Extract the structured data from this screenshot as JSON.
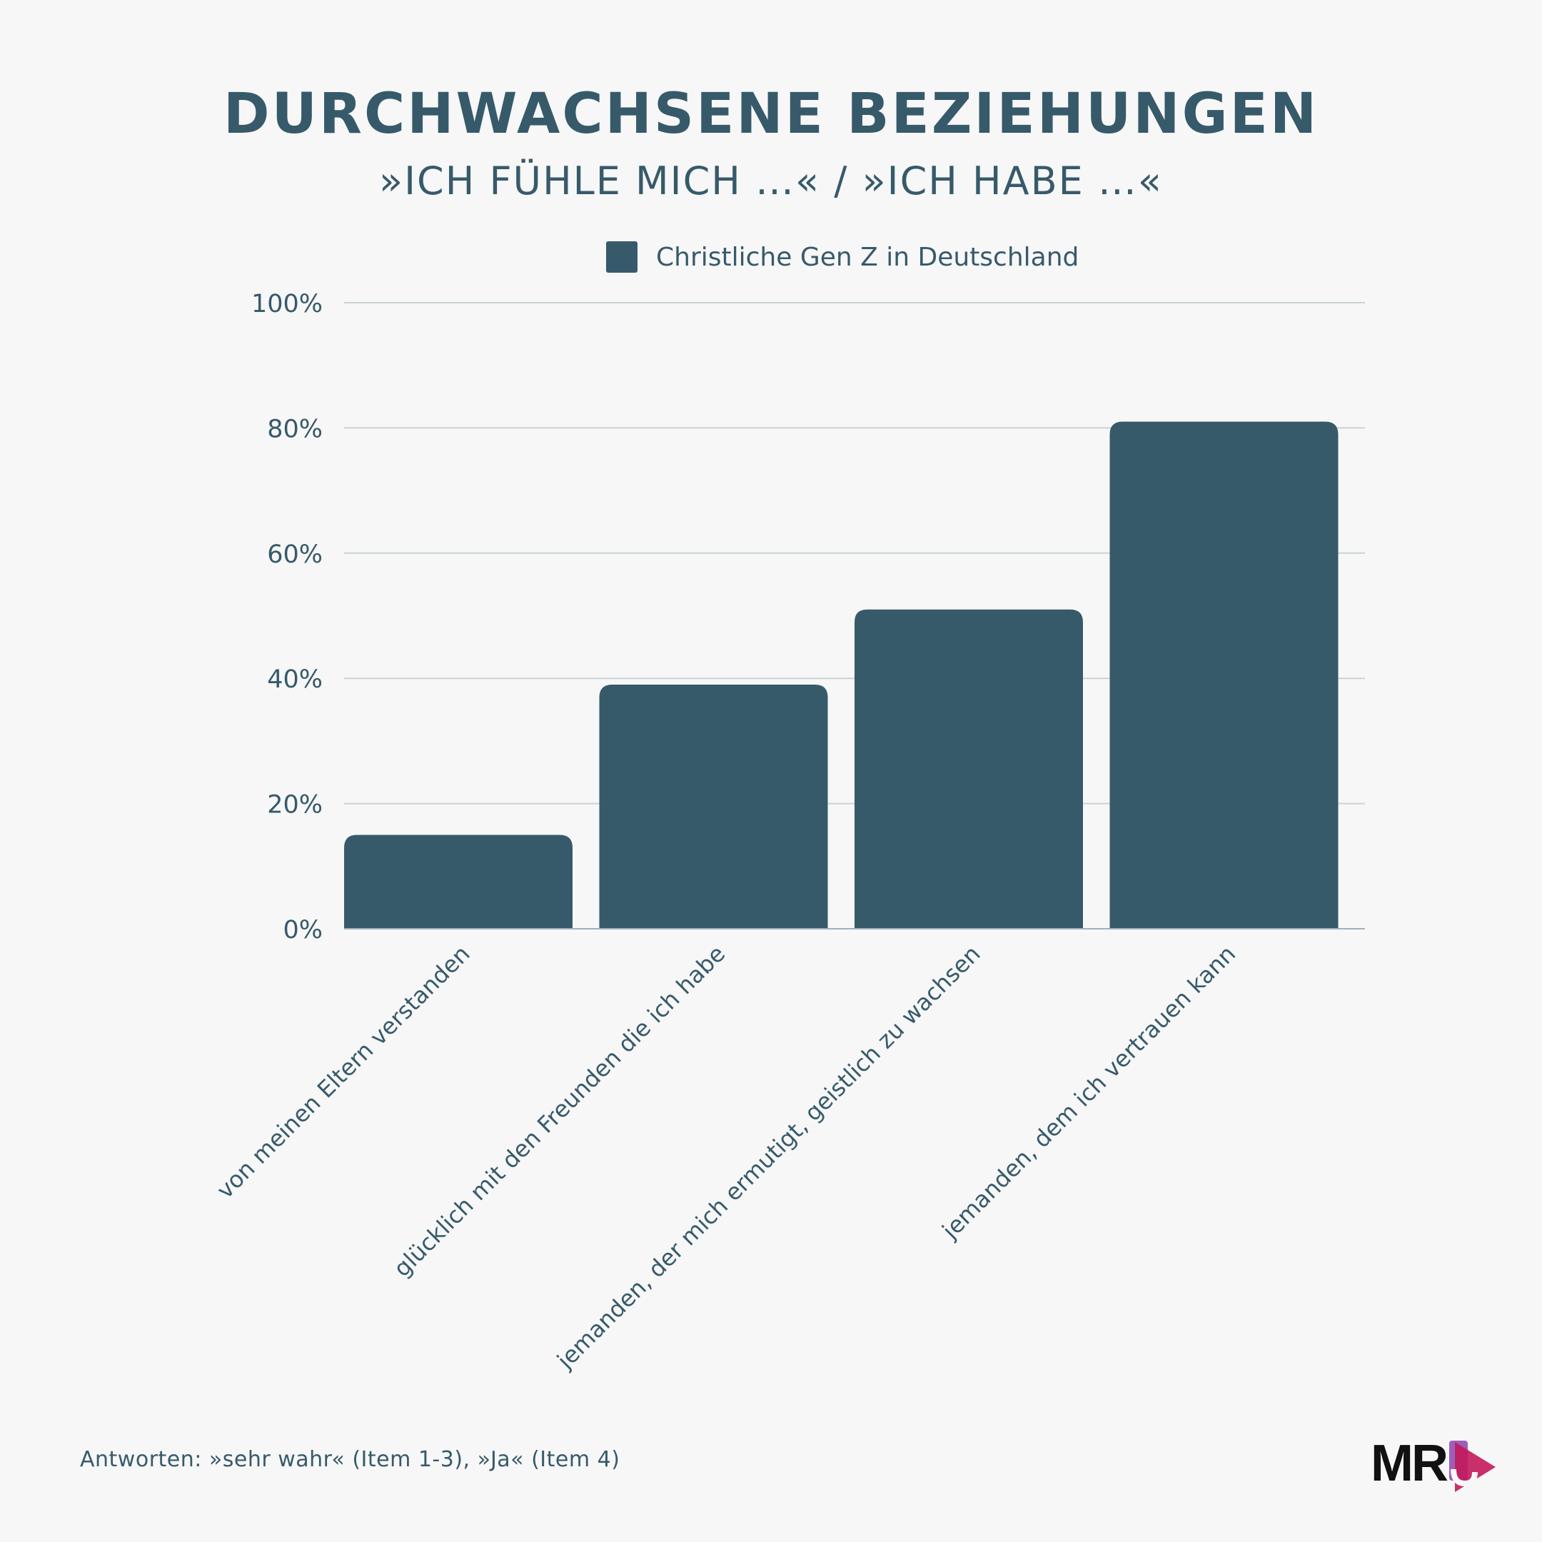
{
  "header": {
    "title": "DURCHWACHSENE BEZIEHUNGEN",
    "subtitle": "»ICH FÜHLE MICH …« / »ICH HABE …«"
  },
  "footnote": "Antworten: »sehr wahr« (Item 1-3), »Ja« (Item 4)",
  "logo": {
    "text": "MR",
    "accent_color": "#c2185b"
  },
  "colors": {
    "bar": "#375a6b",
    "grid": "#c9d3d7",
    "text": "#375a6b",
    "background": "#f7f7f7"
  },
  "chart_data": {
    "type": "bar",
    "title": "DURCHWACHSENE BEZIEHUNGEN",
    "subtitle": "»ICH FÜHLE MICH …« / »ICH HABE …«",
    "categories": [
      "von meinen Eltern verstanden",
      "glücklich mit den Freunden die ich habe",
      "jemanden, der mich ermutigt, geistlich zu wachsen",
      "jemanden, dem ich vertrauen kann"
    ],
    "series": [
      {
        "name": "Christliche Gen Z in Deutschland",
        "values": [
          15,
          39,
          51,
          81
        ]
      }
    ],
    "ylim": [
      0,
      100
    ],
    "yticks": [
      0,
      20,
      40,
      60,
      80,
      100
    ],
    "ytick_labels": [
      "0%",
      "20%",
      "40%",
      "60%",
      "80%",
      "100%"
    ],
    "xlabel": "",
    "ylabel": "",
    "grid": true,
    "legend": "top-center"
  }
}
